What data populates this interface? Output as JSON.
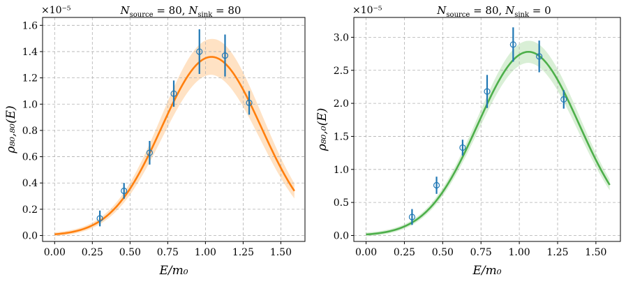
{
  "chart_data": [
    {
      "type": "scatter",
      "title": "N_source = 80, N_sink = 80",
      "title_parts": {
        "a": "N",
        "a_sub": "source",
        "b": " = 80, ",
        "c": "N",
        "c_sub": "sink",
        "d": " = 80"
      },
      "scale_label": "×10⁻⁵",
      "xlabel": "E/m₀",
      "ylabel": "ρ₈₀,₈₀(E)",
      "xlim": [
        -0.08,
        1.66
      ],
      "ylim": [
        -0.045,
        1.66
      ],
      "xticks": [
        0.0,
        0.25,
        0.5,
        0.75,
        1.0,
        1.25,
        1.5
      ],
      "xtick_labels": [
        "0.00",
        "0.25",
        "0.50",
        "0.75",
        "1.00",
        "1.25",
        "1.50"
      ],
      "yticks": [
        0.0,
        0.2,
        0.4,
        0.6,
        0.8,
        1.0,
        1.2,
        1.4,
        1.6
      ],
      "ytick_labels": [
        "0.0",
        "0.2",
        "0.4",
        "0.6",
        "0.8",
        "1.0",
        "1.2",
        "1.4",
        "1.6"
      ],
      "grid": true,
      "fit_color": "#ff7f0e",
      "band_color": "#ffe2c4",
      "point_color": "#1f77b4",
      "fit": {
        "amplitude": 1.36,
        "center": 1.04,
        "width": 0.33,
        "base": 0.0,
        "band_rel": 0.09,
        "x_range": [
          0.0,
          1.59
        ]
      },
      "points": [
        {
          "x": 0.3,
          "y": 0.13,
          "err": 0.06
        },
        {
          "x": 0.46,
          "y": 0.34,
          "err": 0.06
        },
        {
          "x": 0.63,
          "y": 0.63,
          "err": 0.09
        },
        {
          "x": 0.79,
          "y": 1.08,
          "err": 0.1
        },
        {
          "x": 0.96,
          "y": 1.4,
          "err": 0.17
        },
        {
          "x": 1.13,
          "y": 1.37,
          "err": 0.16
        },
        {
          "x": 1.29,
          "y": 1.01,
          "err": 0.09
        }
      ]
    },
    {
      "type": "scatter",
      "title": "N_source = 80, N_sink = 0",
      "title_parts": {
        "a": "N",
        "a_sub": "source",
        "b": " = 80, ",
        "c": "N",
        "c_sub": "sink",
        "d": " = 0"
      },
      "scale_label": "×10⁻⁵",
      "xlabel": "E/m₀",
      "ylabel": "ρ₈₀,₀(E)",
      "xlim": [
        -0.08,
        1.66
      ],
      "ylim": [
        -0.09,
        3.3
      ],
      "xticks": [
        0.0,
        0.25,
        0.5,
        0.75,
        1.0,
        1.25,
        1.5
      ],
      "xtick_labels": [
        "0.00",
        "0.25",
        "0.50",
        "0.75",
        "1.00",
        "1.25",
        "1.50"
      ],
      "yticks": [
        0.0,
        0.5,
        1.0,
        1.5,
        2.0,
        2.5,
        3.0
      ],
      "ytick_labels": [
        "0.0",
        "0.5",
        "1.0",
        "1.5",
        "2.0",
        "2.5",
        "3.0"
      ],
      "grid": true,
      "fit_color": "#4daf4a",
      "band_color": "#d9efd6",
      "point_color": "#1f77b4",
      "fit": {
        "amplitude": 2.78,
        "center": 1.06,
        "width": 0.33,
        "base": 0.0,
        "band_rel": 0.05,
        "x_range": [
          0.0,
          1.59
        ]
      },
      "points": [
        {
          "x": 0.3,
          "y": 0.28,
          "err": 0.12
        },
        {
          "x": 0.46,
          "y": 0.76,
          "err": 0.13
        },
        {
          "x": 0.63,
          "y": 1.33,
          "err": 0.12
        },
        {
          "x": 0.79,
          "y": 2.18,
          "err": 0.25
        },
        {
          "x": 0.96,
          "y": 2.89,
          "err": 0.26
        },
        {
          "x": 1.13,
          "y": 2.71,
          "err": 0.24
        },
        {
          "x": 1.29,
          "y": 2.06,
          "err": 0.14
        }
      ]
    }
  ]
}
